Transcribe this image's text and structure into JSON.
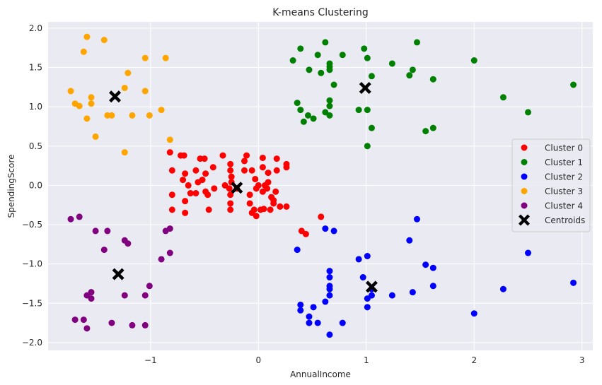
{
  "chart_data": {
    "type": "scatter",
    "title": "K-means Clustering",
    "xlabel": "AnnualIncome",
    "ylabel": "SpendingScore",
    "xlim": [
      -1.95,
      3.1
    ],
    "ylim": [
      -2.1,
      2.08
    ],
    "xticks": [
      -1,
      0,
      1,
      2,
      3
    ],
    "xtick_labels": [
      "−1",
      "0",
      "1",
      "2",
      "3"
    ],
    "yticks": [
      -2.0,
      -1.5,
      -1.0,
      -0.5,
      0.0,
      0.5,
      1.0,
      1.5,
      2.0
    ],
    "ytick_labels": [
      "−2.0",
      "−1.5",
      "−1.0",
      "−0.5",
      "0.0",
      "0.5",
      "1.0",
      "1.5",
      "2.0"
    ],
    "grid": true,
    "legend_position": "center-right",
    "colors": {
      "background": "#eaeaf2",
      "grid": "#ffffff",
      "cluster0": "#ff0000",
      "cluster1": "#008000",
      "cluster2": "#0000ff",
      "cluster3": "#ffa500",
      "cluster4": "#800080",
      "centroids": "#000000"
    },
    "series": [
      {
        "name": "Cluster 0",
        "color": "#ff0000",
        "points": [
          [
            -0.82,
            0.42
          ],
          [
            -0.8,
            0.19
          ],
          [
            -0.8,
            -0.12
          ],
          [
            -0.8,
            -0.31
          ],
          [
            -0.72,
            0.38
          ],
          [
            -0.69,
            0.38
          ],
          [
            -0.68,
            0.15
          ],
          [
            -0.7,
            0.07
          ],
          [
            -0.65,
            0.0
          ],
          [
            -0.63,
            -0.1
          ],
          [
            -0.68,
            -0.2
          ],
          [
            -0.68,
            -0.35
          ],
          [
            -0.58,
            0.19
          ],
          [
            -0.58,
            -0.1
          ],
          [
            -0.56,
            0.04
          ],
          [
            -0.54,
            0.34
          ],
          [
            -0.52,
            0.07
          ],
          [
            -0.5,
            0.34
          ],
          [
            -0.49,
            0.15
          ],
          [
            -0.49,
            -0.08
          ],
          [
            -0.47,
            -0.12
          ],
          [
            -0.46,
            -0.31
          ],
          [
            -0.42,
            0.23
          ],
          [
            -0.41,
            -0.04
          ],
          [
            -0.33,
            0.38
          ],
          [
            -0.31,
            0.0
          ],
          [
            -0.27,
            -0.04
          ],
          [
            -0.26,
            -0.12
          ],
          [
            -0.26,
            -0.23
          ],
          [
            -0.26,
            -0.31
          ],
          [
            -0.26,
            0.27
          ],
          [
            -0.26,
            0.19
          ],
          [
            -0.25,
            0.11
          ],
          [
            -0.25,
            0.04
          ],
          [
            -0.2,
            -0.04
          ],
          [
            -0.13,
            0.31
          ],
          [
            -0.13,
            0.19
          ],
          [
            -0.11,
            0.38
          ],
          [
            -0.08,
            -0.23
          ],
          [
            -0.08,
            -0.12
          ],
          [
            -0.06,
            0.19
          ],
          [
            -0.06,
            -0.35
          ],
          [
            -0.04,
            -0.31
          ],
          [
            -0.03,
            0.08
          ],
          [
            -0.02,
            -0.39
          ],
          [
            -0.02,
            -0.04
          ],
          [
            0.02,
            -0.31
          ],
          [
            0.0,
            0.0
          ],
          [
            0.04,
            0.35
          ],
          [
            0.04,
            0.23
          ],
          [
            0.04,
            -0.08
          ],
          [
            0.05,
            -0.3
          ],
          [
            0.06,
            0.0
          ],
          [
            0.08,
            -0.04
          ],
          [
            0.09,
            0.16
          ],
          [
            0.09,
            0.04
          ],
          [
            0.11,
            -0.31
          ],
          [
            0.12,
            -0.15
          ],
          [
            0.14,
            -0.23
          ],
          [
            0.14,
            -0.19
          ],
          [
            0.16,
            -0.08
          ],
          [
            0.17,
            0.19
          ],
          [
            0.17,
            0.34
          ],
          [
            0.2,
            -0.27
          ],
          [
            0.26,
            0.27
          ],
          [
            0.26,
            0.23
          ],
          [
            0.26,
            -0.27
          ],
          [
            0.4,
            -0.58
          ],
          [
            0.44,
            -0.62
          ],
          [
            0.58,
            -0.4
          ]
        ]
      },
      {
        "name": "Cluster 1",
        "color": "#008000",
        "points": [
          [
            0.32,
            1.59
          ],
          [
            0.36,
            1.05
          ],
          [
            0.39,
            0.96
          ],
          [
            0.39,
            1.74
          ],
          [
            0.42,
            0.81
          ],
          [
            0.46,
            0.89
          ],
          [
            0.47,
            1.47
          ],
          [
            0.51,
            0.85
          ],
          [
            0.55,
            1.66
          ],
          [
            0.58,
            1.43
          ],
          [
            0.62,
            1.82
          ],
          [
            0.62,
            0.93
          ],
          [
            0.66,
            1.47
          ],
          [
            0.66,
            1.51
          ],
          [
            0.66,
            1.55
          ],
          [
            0.66,
            1.01
          ],
          [
            0.66,
            1.08
          ],
          [
            0.66,
            0.89
          ],
          [
            0.7,
            1.28
          ],
          [
            0.78,
            1.66
          ],
          [
            0.93,
            0.96
          ],
          [
            0.98,
            1.74
          ],
          [
            1.01,
            1.62
          ],
          [
            1.01,
            0.96
          ],
          [
            1.01,
            0.5
          ],
          [
            1.05,
            0.73
          ],
          [
            1.05,
            1.39
          ],
          [
            1.24,
            1.55
          ],
          [
            1.4,
            1.4
          ],
          [
            1.43,
            1.47
          ],
          [
            1.47,
            1.82
          ],
          [
            1.55,
            0.69
          ],
          [
            1.62,
            0.73
          ],
          [
            1.62,
            1.35
          ],
          [
            2.0,
            1.59
          ],
          [
            2.27,
            1.12
          ],
          [
            2.5,
            0.93
          ],
          [
            2.92,
            1.28
          ]
        ]
      },
      {
        "name": "Cluster 2",
        "color": "#0000ff",
        "points": [
          [
            0.36,
            -0.82
          ],
          [
            0.39,
            -1.52
          ],
          [
            0.39,
            -1.59
          ],
          [
            0.47,
            -1.67
          ],
          [
            0.47,
            -1.75
          ],
          [
            0.51,
            -1.55
          ],
          [
            0.55,
            -1.75
          ],
          [
            0.62,
            -0.55
          ],
          [
            0.62,
            -1.48
          ],
          [
            0.66,
            -1.09
          ],
          [
            0.66,
            -1.17
          ],
          [
            0.66,
            -1.28
          ],
          [
            0.66,
            -1.32
          ],
          [
            0.66,
            -1.4
          ],
          [
            0.66,
            -1.9
          ],
          [
            0.7,
            -0.58
          ],
          [
            0.78,
            -1.75
          ],
          [
            0.93,
            -0.94
          ],
          [
            0.97,
            -1.17
          ],
          [
            1.01,
            -0.9
          ],
          [
            1.01,
            -1.44
          ],
          [
            1.01,
            -1.55
          ],
          [
            1.05,
            -1.32
          ],
          [
            1.05,
            -1.4
          ],
          [
            1.24,
            -1.4
          ],
          [
            1.4,
            -0.7
          ],
          [
            1.43,
            -1.36
          ],
          [
            1.47,
            -0.43
          ],
          [
            1.55,
            -1.01
          ],
          [
            1.62,
            -1.05
          ],
          [
            1.62,
            -1.28
          ],
          [
            2.0,
            -1.63
          ],
          [
            2.27,
            -1.32
          ],
          [
            2.5,
            -0.86
          ],
          [
            2.92,
            -1.24
          ]
        ]
      },
      {
        "name": "Cluster 3",
        "color": "#ffa500",
        "points": [
          [
            -1.74,
            1.2
          ],
          [
            -1.7,
            1.04
          ],
          [
            -1.66,
            1.01
          ],
          [
            -1.62,
            1.7
          ],
          [
            -1.59,
            1.89
          ],
          [
            -1.59,
            0.85
          ],
          [
            -1.55,
            1.04
          ],
          [
            -1.55,
            1.12
          ],
          [
            -1.51,
            0.62
          ],
          [
            -1.43,
            1.85
          ],
          [
            -1.4,
            0.89
          ],
          [
            -1.36,
            0.89
          ],
          [
            -1.24,
            1.24
          ],
          [
            -1.24,
            0.42
          ],
          [
            -1.21,
            1.43
          ],
          [
            -1.17,
            0.89
          ],
          [
            -1.05,
            1.62
          ],
          [
            -1.05,
            1.2
          ],
          [
            -1.01,
            0.89
          ],
          [
            -0.9,
            0.96
          ],
          [
            -0.86,
            1.62
          ],
          [
            -0.82,
            0.58
          ]
        ]
      },
      {
        "name": "Cluster 4",
        "color": "#800080",
        "points": [
          [
            -1.74,
            -0.43
          ],
          [
            -1.7,
            -1.71
          ],
          [
            -1.66,
            -0.4
          ],
          [
            -1.62,
            -1.71
          ],
          [
            -1.59,
            -1.4
          ],
          [
            -1.59,
            -1.82
          ],
          [
            -1.55,
            -1.36
          ],
          [
            -1.55,
            -1.44
          ],
          [
            -1.51,
            -0.58
          ],
          [
            -1.43,
            -0.82
          ],
          [
            -1.4,
            -0.58
          ],
          [
            -1.36,
            -1.75
          ],
          [
            -1.24,
            -0.7
          ],
          [
            -1.24,
            -1.4
          ],
          [
            -1.21,
            -0.74
          ],
          [
            -1.17,
            -1.78
          ],
          [
            -1.05,
            -1.4
          ],
          [
            -1.05,
            -1.78
          ],
          [
            -1.01,
            -1.28
          ],
          [
            -0.9,
            -0.94
          ],
          [
            -0.86,
            -0.58
          ],
          [
            -0.82,
            -0.55
          ],
          [
            -0.82,
            -0.86
          ]
        ]
      }
    ],
    "centroids": {
      "name": "Centroids",
      "color": "#000000",
      "points": [
        [
          -0.2,
          -0.03
        ],
        [
          0.99,
          1.24
        ],
        [
          1.05,
          -1.29
        ],
        [
          -1.33,
          1.13
        ],
        [
          -1.3,
          -1.13
        ]
      ]
    }
  }
}
